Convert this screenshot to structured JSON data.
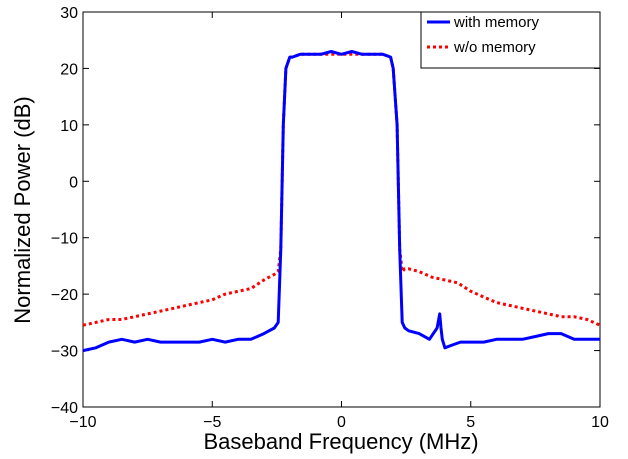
{
  "chart_data": {
    "type": "line",
    "title": "",
    "xlabel": "Baseband Frequency (MHz)",
    "ylabel": "Normalized Power (dB)",
    "xlim": [
      -10,
      10
    ],
    "ylim": [
      -40,
      30
    ],
    "xticks": [
      -10,
      -5,
      0,
      5,
      10
    ],
    "yticks": [
      -40,
      -30,
      -20,
      -10,
      0,
      10,
      20,
      30
    ],
    "xtick_labels": [
      "−10",
      "−5",
      "0",
      "5",
      "10"
    ],
    "ytick_labels": [
      "−40",
      "−30",
      "−20",
      "−10",
      "0",
      "10",
      "20",
      "30"
    ],
    "grid": false,
    "legend": "top-right",
    "series": [
      {
        "name": "with memory",
        "color": "#0000ff",
        "style": "solid",
        "x": [
          -10,
          -9.5,
          -9,
          -8.5,
          -8,
          -7.5,
          -7,
          -6.5,
          -6,
          -5.5,
          -5,
          -4.5,
          -4,
          -3.5,
          -3,
          -2.6,
          -2.45,
          -2.35,
          -2.25,
          -2.15,
          -2.0,
          -1.9,
          -1.6,
          -1.2,
          -0.8,
          -0.4,
          0,
          0.4,
          0.8,
          1.2,
          1.6,
          1.9,
          2.0,
          2.15,
          2.25,
          2.35,
          2.45,
          2.6,
          3.0,
          3.4,
          3.7,
          3.8,
          3.85,
          3.9,
          4.0,
          4.3,
          4.6,
          5.0,
          5.5,
          6.0,
          6.5,
          7.0,
          7.5,
          8.0,
          8.5,
          9.0,
          9.5,
          10
        ],
        "y": [
          -30,
          -29.5,
          -28.5,
          -28,
          -28.5,
          -28,
          -28.5,
          -28.5,
          -28.5,
          -28.5,
          -28,
          -28.5,
          -28,
          -28,
          -27,
          -26,
          -25,
          -12,
          10,
          20,
          22,
          22,
          22.5,
          22.5,
          22.5,
          23,
          22.5,
          23,
          22.5,
          22.5,
          22.5,
          22,
          20,
          10,
          -12,
          -25,
          -26,
          -26.5,
          -27,
          -28,
          -26,
          -23.5,
          -26,
          -28,
          -29.5,
          -29,
          -28.5,
          -28.5,
          -28.5,
          -28,
          -28,
          -28,
          -27.5,
          -27,
          -27,
          -28,
          -28,
          -28
        ]
      },
      {
        "name": "w/o memory",
        "color": "#ff0000",
        "style": "dotted",
        "x": [
          -10,
          -9.5,
          -9,
          -8.5,
          -8,
          -7.5,
          -7,
          -6.5,
          -6,
          -5.5,
          -5,
          -4.5,
          -4,
          -3.5,
          -3,
          -2.6,
          -2.45,
          -2.35,
          -2.25,
          -2.15,
          -2.0,
          -1.9,
          -1.6,
          -1.2,
          -0.8,
          -0.4,
          0,
          0.4,
          0.8,
          1.2,
          1.6,
          1.9,
          2.0,
          2.15,
          2.25,
          2.35,
          2.45,
          2.6,
          3.0,
          3.5,
          4.0,
          4.5,
          5.0,
          5.5,
          6.0,
          6.5,
          7.0,
          7.5,
          8.0,
          8.5,
          9.0,
          9.5,
          10
        ],
        "y": [
          -25.5,
          -25,
          -24.5,
          -24.5,
          -24,
          -23.5,
          -23,
          -22.5,
          -22,
          -21.5,
          -21,
          -20,
          -19.5,
          -19,
          -17.5,
          -16.5,
          -16,
          -12,
          10,
          20,
          22,
          22,
          22.5,
          22.5,
          22.5,
          22.5,
          22.5,
          22.5,
          22.5,
          22.5,
          22.5,
          22,
          20,
          10,
          -12,
          -16,
          -15.5,
          -15.5,
          -16,
          -17,
          -17.5,
          -18,
          -19.5,
          -20.5,
          -21.5,
          -22,
          -22.5,
          -23,
          -23.5,
          -24,
          -24,
          -24.5,
          -25.5
        ]
      }
    ]
  }
}
